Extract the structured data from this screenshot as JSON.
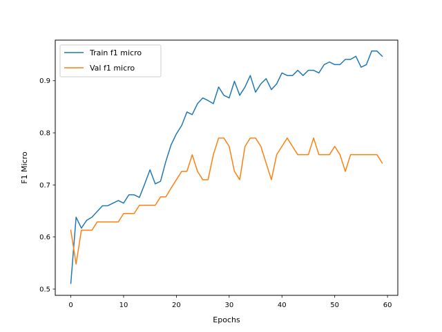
{
  "chart_data": {
    "type": "line",
    "title": "",
    "xlabel": "Epochs",
    "ylabel": "F1 Micro",
    "xlim": [
      -2.95,
      61.95
    ],
    "ylim": [
      0.488,
      0.978
    ],
    "xticks": [
      0,
      10,
      20,
      30,
      40,
      50,
      60
    ],
    "yticks": [
      0.5,
      0.6,
      0.7,
      0.8,
      0.9
    ],
    "ytick_labels": [
      "0.5",
      "0.6",
      "0.7",
      "0.8",
      "0.9"
    ],
    "grid": false,
    "legend_position": "upper-left",
    "x": [
      0,
      1,
      2,
      3,
      4,
      5,
      6,
      7,
      8,
      9,
      10,
      11,
      12,
      13,
      14,
      15,
      16,
      17,
      18,
      19,
      20,
      21,
      22,
      23,
      24,
      25,
      26,
      27,
      28,
      29,
      30,
      31,
      32,
      33,
      34,
      35,
      36,
      37,
      38,
      39,
      40,
      41,
      42,
      43,
      44,
      45,
      46,
      47,
      48,
      49,
      50,
      51,
      52,
      53,
      54,
      55,
      56,
      57,
      58,
      59
    ],
    "series": [
      {
        "name": "Train f1 micro",
        "color": "#1f77b4",
        "values": [
          0.511,
          0.638,
          0.617,
          0.632,
          0.638,
          0.649,
          0.66,
          0.66,
          0.665,
          0.67,
          0.665,
          0.681,
          0.681,
          0.676,
          0.702,
          0.729,
          0.702,
          0.707,
          0.745,
          0.777,
          0.798,
          0.814,
          0.84,
          0.835,
          0.856,
          0.867,
          0.862,
          0.856,
          0.888,
          0.872,
          0.867,
          0.899,
          0.872,
          0.888,
          0.91,
          0.878,
          0.894,
          0.904,
          0.883,
          0.894,
          0.915,
          0.91,
          0.91,
          0.92,
          0.91,
          0.92,
          0.92,
          0.915,
          0.931,
          0.936,
          0.931,
          0.931,
          0.941,
          0.941,
          0.947,
          0.926,
          0.931,
          0.957,
          0.957,
          0.947
        ]
      },
      {
        "name": "Val f1 micro",
        "color": "#ff7f0e",
        "values": [
          0.613,
          0.548,
          0.613,
          0.613,
          0.613,
          0.629,
          0.629,
          0.629,
          0.629,
          0.629,
          0.645,
          0.645,
          0.645,
          0.661,
          0.661,
          0.661,
          0.661,
          0.677,
          0.677,
          0.694,
          0.71,
          0.726,
          0.726,
          0.758,
          0.726,
          0.71,
          0.71,
          0.758,
          0.79,
          0.79,
          0.774,
          0.726,
          0.71,
          0.774,
          0.79,
          0.79,
          0.774,
          0.742,
          0.71,
          0.758,
          0.774,
          0.79,
          0.774,
          0.758,
          0.758,
          0.758,
          0.79,
          0.758,
          0.758,
          0.758,
          0.774,
          0.758,
          0.726,
          0.758,
          0.758,
          0.758,
          0.758,
          0.758,
          0.758,
          0.742
        ]
      }
    ]
  }
}
